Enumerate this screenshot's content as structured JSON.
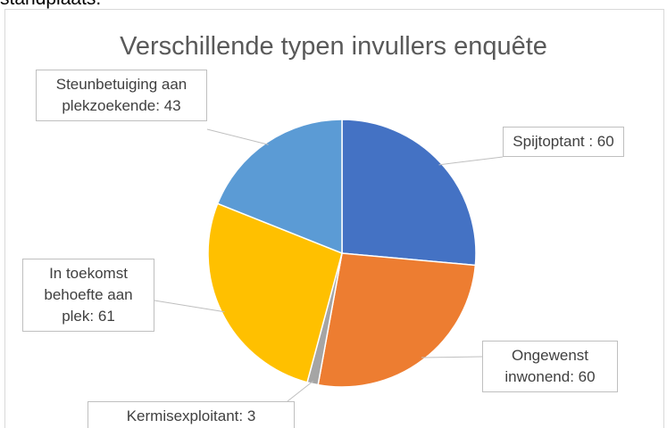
{
  "header": {
    "text": "standplaats."
  },
  "chart_data": {
    "type": "pie",
    "title": "Verschillende typen invullers enquête",
    "categories": [
      "Spijtoptant :",
      "Ongewenst inwonend:",
      "Kermisexploitant:",
      "In toekomst behoefte aan plek:",
      "Steunbetuiging aan plekzoekende:"
    ],
    "values": [
      60,
      60,
      3,
      61,
      43
    ],
    "colors": [
      "#4472c4",
      "#ed7d31",
      "#a5a5a5",
      "#ffc000",
      "#5b9bd5"
    ]
  }
}
